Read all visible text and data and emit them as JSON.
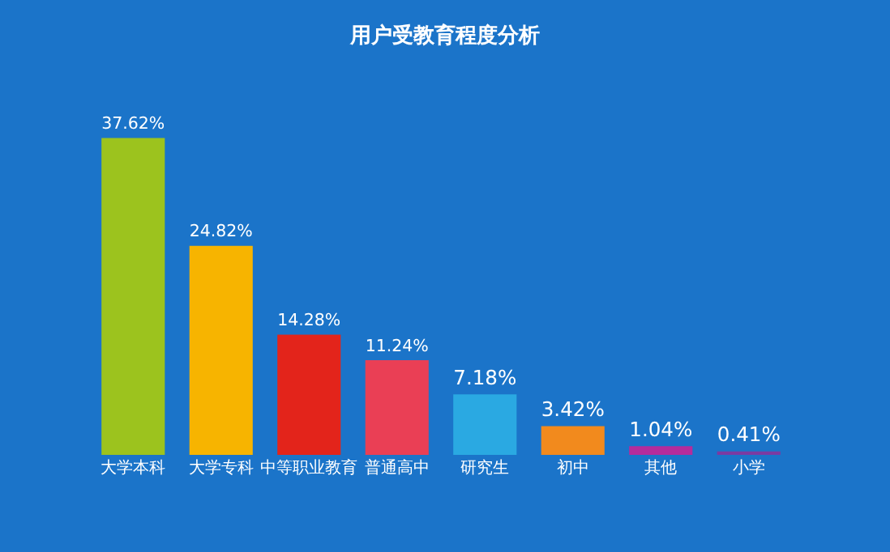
{
  "chart_data": {
    "type": "bar",
    "title": "用户受教育程度分析",
    "categories": [
      "大学本科",
      "大学专科",
      "中等职业教育",
      "普通高中",
      "研究生",
      "初中",
      "其他",
      "小学"
    ],
    "values": [
      37.62,
      24.82,
      14.28,
      11.24,
      7.18,
      3.42,
      1.04,
      0.41
    ],
    "colors": [
      "#9cc31e",
      "#f7b400",
      "#e3241b",
      "#ea3f55",
      "#2aa9e2",
      "#f28a1d",
      "#b52c9c",
      "#7b3aa2"
    ],
    "value_labels": [
      "37.62%",
      "24.82%",
      "14.28%",
      "11.24%",
      "7.18%",
      "3.42%",
      "1.04%",
      "0.41%"
    ],
    "grid": false,
    "legend": false
  }
}
